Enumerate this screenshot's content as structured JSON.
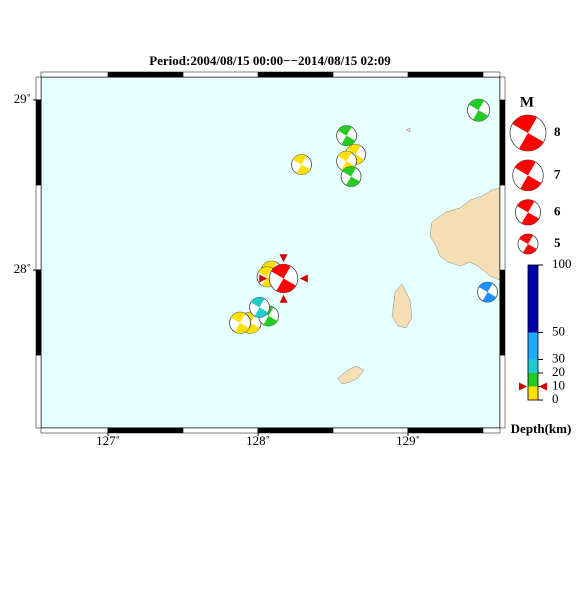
{
  "title": "Period:2004/08/15 00:00−−2014/08/15 02:09",
  "map": {
    "xlim": [
      126.553,
      129.613
    ],
    "ylim": [
      27.071,
      29.135
    ],
    "xticks": [
      {
        "value": 127,
        "label": "127˚"
      },
      {
        "value": 128,
        "label": "128˚"
      },
      {
        "value": 129,
        "label": "129˚"
      }
    ],
    "yticks": [
      {
        "value": 28,
        "label": "28˚"
      },
      {
        "value": 29,
        "label": "29˚"
      }
    ],
    "ocean_color": "#e6ffff",
    "land_color": "#f5deb3",
    "events": [
      {
        "lon": 129.47,
        "lat": 28.94,
        "mag": 5.4,
        "color": "#22cc22"
      },
      {
        "lon": 128.59,
        "lat": 28.79,
        "mag": 5.0,
        "color": "#22cc22"
      },
      {
        "lon": 128.65,
        "lat": 28.68,
        "mag": 5.0,
        "color": "#ffe000"
      },
      {
        "lon": 128.59,
        "lat": 28.64,
        "mag": 5.0,
        "color": "#ffe000"
      },
      {
        "lon": 128.29,
        "lat": 28.62,
        "mag": 5.0,
        "color": "#ffe000"
      },
      {
        "lon": 128.62,
        "lat": 28.55,
        "mag": 5.0,
        "color": "#22cc22"
      },
      {
        "lon": 128.09,
        "lat": 27.99,
        "mag": 5.2,
        "color": "#ffe000"
      },
      {
        "lon": 128.06,
        "lat": 27.96,
        "mag": 5.0,
        "color": "#ffe000"
      },
      {
        "lon": 127.95,
        "lat": 27.69,
        "mag": 5.2,
        "color": "#ffe000"
      },
      {
        "lon": 127.88,
        "lat": 27.69,
        "mag": 5.2,
        "color": "#ffe000"
      },
      {
        "lon": 128.07,
        "lat": 27.73,
        "mag": 5.0,
        "color": "#22cc22"
      },
      {
        "lon": 128.01,
        "lat": 27.78,
        "mag": 5.0,
        "color": "#22cccc"
      },
      {
        "lon": 129.53,
        "lat": 27.87,
        "mag": 5.0,
        "color": "#1e90ff"
      },
      {
        "lon": 128.17,
        "lat": 27.95,
        "mag": 6.6,
        "color": "#ff0000",
        "depth": 10
      }
    ]
  },
  "legend": {
    "title": "M",
    "magnitudes": [
      8,
      7,
      6,
      5
    ],
    "color": "#ff0000"
  },
  "depth_scale": {
    "label": "Depth(km)",
    "ticks": [
      0,
      10,
      20,
      30,
      50,
      100
    ],
    "colors": [
      "#ffe000",
      "#22cc22",
      "#22cccc",
      "#22aaff",
      "#0000aa"
    ]
  }
}
